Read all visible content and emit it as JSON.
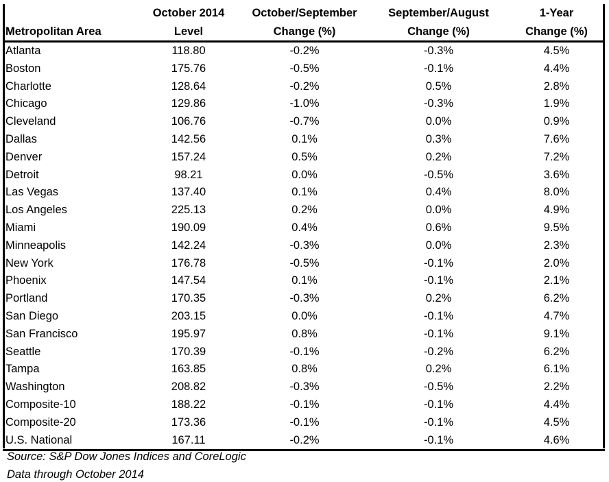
{
  "table": {
    "headers": {
      "metro": "Metropolitan Area",
      "level_line1": "October 2014",
      "level_line2": "Level",
      "octsep_line1": "October/September",
      "octsep_line2": "Change (%)",
      "sepaug_line1": "September/August",
      "sepaug_line2": "Change (%)",
      "year_line1": "1-Year",
      "year_line2": "Change (%)"
    },
    "rows": [
      [
        "Atlanta",
        "118.80",
        "-0.2%",
        "-0.3%",
        "4.5%"
      ],
      [
        "Boston",
        "175.76",
        "-0.5%",
        "-0.1%",
        "4.4%"
      ],
      [
        "Charlotte",
        "128.64",
        "-0.2%",
        "0.5%",
        "2.8%"
      ],
      [
        "Chicago",
        "129.86",
        "-1.0%",
        "-0.3%",
        "1.9%"
      ],
      [
        "Cleveland",
        "106.76",
        "-0.7%",
        "0.0%",
        "0.9%"
      ],
      [
        "Dallas",
        "142.56",
        "0.1%",
        "0.3%",
        "7.6%"
      ],
      [
        "Denver",
        "157.24",
        "0.5%",
        "0.2%",
        "7.2%"
      ],
      [
        "Detroit",
        "98.21",
        "0.0%",
        "-0.5%",
        "3.6%"
      ],
      [
        "Las Vegas",
        "137.40",
        "0.1%",
        "0.4%",
        "8.0%"
      ],
      [
        "Los Angeles",
        "225.13",
        "0.2%",
        "0.0%",
        "4.9%"
      ],
      [
        "Miami",
        "190.09",
        "0.4%",
        "0.6%",
        "9.5%"
      ],
      [
        "Minneapolis",
        "142.24",
        "-0.3%",
        "0.0%",
        "2.3%"
      ],
      [
        "New York",
        "176.78",
        "-0.5%",
        "-0.1%",
        "2.0%"
      ],
      [
        "Phoenix",
        "147.54",
        "0.1%",
        "-0.1%",
        "2.1%"
      ],
      [
        "Portland",
        "170.35",
        "-0.3%",
        "0.2%",
        "6.2%"
      ],
      [
        "San Diego",
        "203.15",
        "0.0%",
        "-0.1%",
        "4.7%"
      ],
      [
        "San Francisco",
        "195.97",
        "0.8%",
        "-0.1%",
        "9.1%"
      ],
      [
        "Seattle",
        "170.39",
        "-0.1%",
        "-0.2%",
        "6.2%"
      ],
      [
        "Tampa",
        "163.85",
        "0.8%",
        "0.2%",
        "6.1%"
      ],
      [
        "Washington",
        "208.82",
        "-0.3%",
        "-0.5%",
        "2.2%"
      ],
      [
        "Composite-10",
        "188.22",
        "-0.1%",
        "-0.1%",
        "4.4%"
      ],
      [
        "Composite-20",
        "173.36",
        "-0.1%",
        "-0.1%",
        "4.5%"
      ],
      [
        "U.S. National",
        "167.11",
        "-0.2%",
        "-0.1%",
        "4.6%"
      ]
    ]
  },
  "footer": {
    "source": "Source: S&P Dow Jones Indices and CoreLogic",
    "data_through": "Data through October 2014"
  }
}
